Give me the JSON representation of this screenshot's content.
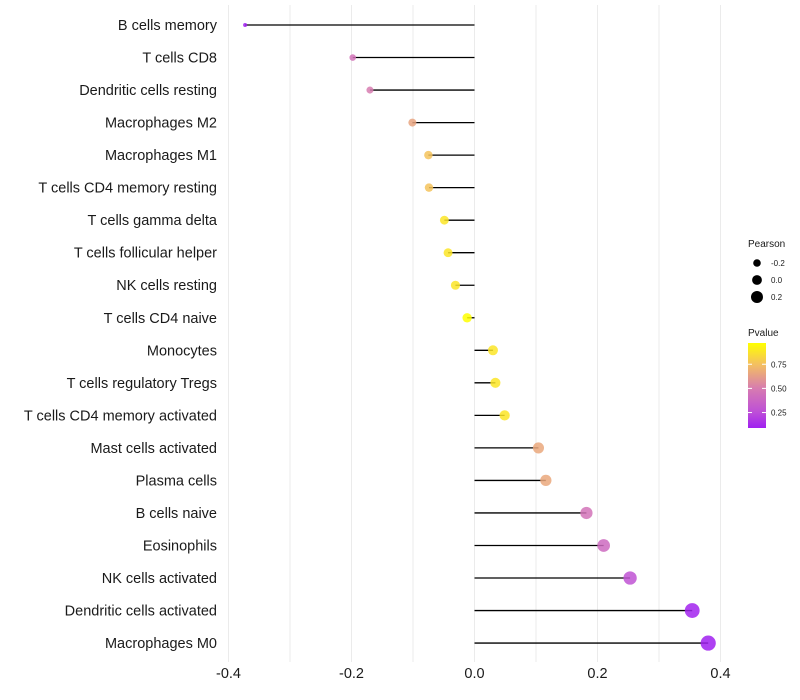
{
  "chart_data": {
    "type": "lollipop",
    "title": "",
    "xlabel": "",
    "ylabel": "",
    "xlim": [
      -0.4,
      0.4
    ],
    "xticks": [
      -0.4,
      -0.2,
      0.0,
      0.2,
      0.4
    ],
    "xtick_labels": [
      "-0.4",
      "-0.2",
      "0.0",
      "0.2",
      "0.4"
    ],
    "minor_gridlines": [
      -0.3,
      -0.1,
      0.1,
      0.3
    ],
    "grid": true,
    "categories": [
      "B cells memory",
      "T cells CD8",
      "Dendritic cells resting",
      "Macrophages M2",
      "Macrophages M1",
      "T cells CD4 memory resting",
      "T cells gamma delta",
      "T cells follicular helper",
      "NK cells resting",
      "T cells CD4 naive",
      "Monocytes",
      "T cells regulatory  Tregs ",
      "T cells CD4 memory activated",
      "Mast cells activated",
      "Plasma cells",
      "B cells naive",
      "Eosinophils",
      "NK cells activated",
      "Dendritic cells activated",
      "Macrophages M0"
    ],
    "series": [
      {
        "name": "Pearson",
        "values": [
          -0.373,
          -0.198,
          -0.17,
          -0.101,
          -0.075,
          -0.074,
          -0.049,
          -0.043,
          -0.031,
          -0.012,
          0.03,
          0.034,
          0.049,
          0.104,
          0.116,
          0.182,
          0.21,
          0.253,
          0.354,
          0.38
        ]
      },
      {
        "name": "Pvalue",
        "values": [
          0.09,
          0.45,
          0.5,
          0.65,
          0.76,
          0.76,
          0.88,
          0.88,
          0.88,
          0.97,
          0.88,
          0.88,
          0.88,
          0.66,
          0.66,
          0.45,
          0.4,
          0.28,
          0.1,
          0.09
        ]
      }
    ],
    "legend": {
      "placement": "right",
      "size": {
        "title": "Pearson",
        "labels": [
          "-0.2",
          "0.0",
          "0.2"
        ],
        "values": [
          -0.2,
          0.0,
          0.2
        ]
      },
      "color": {
        "title": "Pvalue",
        "labels": [
          "0.75",
          "0.50",
          "0.25"
        ],
        "values": [
          0.75,
          0.5,
          0.25
        ],
        "range": [
          0.09,
          0.97
        ],
        "gradient": [
          {
            "p": 0.09,
            "color": "#a020f0"
          },
          {
            "p": 0.25,
            "color": "#bd4ed8"
          },
          {
            "p": 0.5,
            "color": "#d77cb0"
          },
          {
            "p": 0.75,
            "color": "#f4c060"
          },
          {
            "p": 0.97,
            "color": "#ffff00"
          }
        ]
      }
    },
    "colors": {
      "stem": "#000000",
      "gridline": "#ebebeb"
    }
  }
}
